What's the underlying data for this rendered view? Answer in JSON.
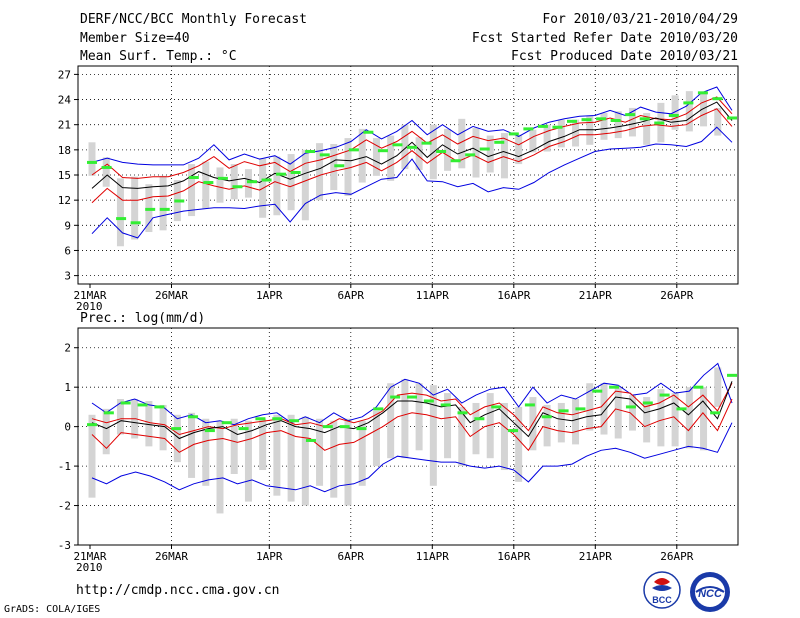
{
  "header": {
    "title": "DERF/NCC/BCC Monthly Forecast",
    "member_size": "Member Size=40",
    "variable": "Mean Surf. Temp.: °C",
    "period": "For 2010/03/21-2010/04/29",
    "fcst_start": "Fcst Started Refer Date 2010/03/20",
    "fcst_produced": "Fcst Produced Date 2010/03/21"
  },
  "footer": {
    "url": "http://cmdp.ncc.cma.gov.cn",
    "grads": "GrADS: COLA/IGES",
    "logo_bcc": "BCC",
    "logo_ncc": "NCC"
  },
  "colors": {
    "ensemble_mean": "#000000",
    "spread_red": "#e00000",
    "envelope_blue": "#0000e0",
    "box_gray": "#d4d4d4",
    "observed_green": "#33ee33",
    "grid": "#000000"
  },
  "chart_data": [
    {
      "type": "line",
      "title": "Mean Surf. Temp.: °C",
      "x_labels": [
        "21MAR",
        "26MAR",
        "1APR",
        "6APR",
        "11APR",
        "16APR",
        "21APR",
        "26APR"
      ],
      "x_label_days": [
        1,
        6,
        12,
        17,
        22,
        27,
        32,
        37
      ],
      "x_sublabel": "2010",
      "ylim": [
        2,
        28
      ],
      "yticks": [
        3,
        6,
        9,
        12,
        15,
        18,
        21,
        24,
        27
      ],
      "days": 40,
      "series": [
        {
          "name": "max",
          "color_key": "envelope_blue",
          "values": [
            16.5,
            17,
            16.5,
            16.3,
            16.2,
            16.2,
            16.2,
            17,
            18.6,
            16.8,
            17.5,
            16.9,
            17.3,
            16.3,
            17.6,
            17.9,
            18.3,
            19,
            20.4,
            19.3,
            20.2,
            21.5,
            19.8,
            21,
            19.8,
            20.8,
            20.2,
            20.4,
            19.6,
            20.6,
            21.3,
            21.7,
            22,
            22.1,
            22.7,
            22.1,
            23.1,
            22.5,
            22.3,
            23.2,
            24.8,
            25.5,
            22.7
          ]
        },
        {
          "name": "upper",
          "color_key": "spread_red",
          "values": [
            15,
            16.3,
            14.7,
            14.6,
            14.8,
            14.8,
            15.3,
            16.1,
            17.2,
            15.8,
            16.6,
            16.1,
            16.5,
            15.4,
            16.4,
            16.8,
            17.4,
            18,
            19.2,
            18.2,
            19,
            20.2,
            18.8,
            19.8,
            18.7,
            19.6,
            19.1,
            19.4,
            18.6,
            19.6,
            20.3,
            20.8,
            21.2,
            21.3,
            21.8,
            21.3,
            22.1,
            21.7,
            21.6,
            22.3,
            23.6,
            24.3,
            22.3
          ]
        },
        {
          "name": "mean",
          "color_key": "ensemble_mean",
          "values": [
            13.4,
            15,
            13.5,
            13.4,
            13.6,
            13.7,
            14.3,
            15.4,
            14.7,
            14.3,
            14.6,
            14.1,
            15.2,
            14.5,
            15.2,
            15.8,
            16.8,
            16.7,
            17.2,
            16.3,
            17.3,
            18.9,
            17.1,
            18.6,
            17.5,
            18.2,
            17.2,
            17.8,
            17.2,
            18,
            19,
            19.6,
            20.4,
            20.4,
            20.6,
            20.9,
            21.3,
            21.8,
            21.3,
            21.5,
            22.8,
            23.7,
            21.5
          ]
        },
        {
          "name": "lower",
          "color_key": "spread_red",
          "values": [
            11.7,
            13.4,
            12,
            12,
            12.4,
            12.5,
            13.1,
            14.2,
            13.7,
            13.3,
            13.7,
            13.2,
            14.2,
            13.6,
            14.3,
            15,
            15.5,
            15.9,
            16.5,
            15.5,
            16.5,
            17.9,
            16.4,
            17.7,
            16.6,
            17.4,
            16.5,
            17.2,
            16.6,
            17.4,
            18.4,
            19,
            19.8,
            19.8,
            20,
            20.3,
            20.8,
            21,
            20.8,
            21,
            22.1,
            22.9,
            20.8
          ]
        },
        {
          "name": "min",
          "color_key": "envelope_blue",
          "values": [
            8,
            9.9,
            8.1,
            7.5,
            9.9,
            10.3,
            10.7,
            10.9,
            11.1,
            11.1,
            11,
            11.3,
            11.5,
            9.4,
            11.6,
            12.6,
            12.9,
            12.7,
            13.6,
            14.5,
            14.7,
            16.9,
            14.3,
            14.2,
            13.6,
            14,
            13,
            13.5,
            13.3,
            14.1,
            15.3,
            16.2,
            17,
            17.8,
            18.1,
            18.2,
            18.3,
            18.7,
            18.6,
            18.4,
            19,
            20.7,
            18.9
          ]
        }
      ],
      "boxes": [
        [
          14.9,
          18.9
        ],
        [
          13.6,
          17.1
        ],
        [
          6.5,
          14.6
        ],
        [
          7.3,
          14.8
        ],
        [
          8.2,
          13.9
        ],
        [
          8.4,
          14.9
        ],
        [
          9.5,
          14.4
        ],
        [
          10.1,
          16.3
        ],
        [
          11,
          16.6
        ],
        [
          11.7,
          15.9
        ],
        [
          12.1,
          16.3
        ],
        [
          12.3,
          15.7
        ],
        [
          9.9,
          17
        ],
        [
          10.2,
          17.2
        ],
        [
          10.8,
          17.5
        ],
        [
          9.6,
          18
        ],
        [
          12,
          18.8
        ],
        [
          13.2,
          18.7
        ],
        [
          12.5,
          19.4
        ],
        [
          14.1,
          20.5
        ],
        [
          14.9,
          19.4
        ],
        [
          14.3,
          19.7
        ],
        [
          15.7,
          21
        ],
        [
          15.6,
          19.5
        ],
        [
          14.5,
          21
        ],
        [
          15.5,
          20.5
        ],
        [
          15.8,
          21.7
        ],
        [
          14.7,
          20.6
        ],
        [
          15.3,
          19.7
        ],
        [
          14.6,
          20
        ],
        [
          16.3,
          19.8
        ],
        [
          17.7,
          20.4
        ],
        [
          17.8,
          21
        ],
        [
          18.3,
          21.6
        ],
        [
          18.4,
          21.6
        ],
        [
          18.6,
          22.1
        ],
        [
          19.2,
          22.4
        ],
        [
          19.4,
          22.6
        ],
        [
          19.6,
          23
        ],
        [
          18.6,
          22.4
        ],
        [
          18.9,
          23.6
        ],
        [
          20.4,
          24.5
        ],
        [
          20.2,
          25
        ],
        [
          20.8,
          24.8
        ],
        [
          19.7,
          23
        ]
      ],
      "observed": [
        16.5,
        15.9,
        9.8,
        9.3,
        10.9,
        10.9,
        11.9,
        14.7,
        14.1,
        14.6,
        13.6,
        14.2,
        14.4,
        15.1,
        15.3,
        17.8,
        17.4,
        16.1,
        18,
        20.1,
        17.9,
        18.6,
        18.3,
        18.8,
        17.8,
        16.7,
        17.4,
        18.1,
        18.9,
        19.9,
        20.5,
        20.8,
        20.7,
        21.4,
        21.6,
        21.7,
        21.5,
        22.2,
        21.7,
        21.2,
        22.1,
        23.6,
        24.8,
        24.1,
        21.8
      ]
    },
    {
      "type": "line",
      "title": "Prec.: log(mm/d)",
      "x_labels": [
        "21MAR",
        "26MAR",
        "1APR",
        "6APR",
        "11APR",
        "16APR",
        "21APR",
        "26APR"
      ],
      "x_label_days": [
        1,
        6,
        12,
        17,
        22,
        27,
        32,
        37
      ],
      "x_sublabel": "2010",
      "ylim": [
        -3,
        2.5
      ],
      "yticks": [
        -3,
        -2,
        -1,
        0,
        1,
        2
      ],
      "days": 40,
      "series": [
        {
          "name": "max",
          "color_key": "envelope_blue",
          "values": [
            0.6,
            0.35,
            0.6,
            0.7,
            0.55,
            0.5,
            0.2,
            0.3,
            0.1,
            0.15,
            0.05,
            0.2,
            0.3,
            0.35,
            0.1,
            0.25,
            0.1,
            0.35,
            0.15,
            0.25,
            0.5,
            1.0,
            1.2,
            1.1,
            0.8,
            0.95,
            0.6,
            0.8,
            0.95,
            1.0,
            0.5,
            1.0,
            0.6,
            0.8,
            0.7,
            0.9,
            1.1,
            1.05,
            0.8,
            0.85,
            1.1,
            0.85,
            0.9,
            1.3,
            1.6,
            0.6
          ]
        },
        {
          "name": "upper",
          "color_key": "spread_red",
          "values": [
            0.2,
            0.1,
            0.2,
            0.2,
            0.1,
            0.05,
            -0.2,
            -0.1,
            0,
            -0.05,
            0.05,
            0.1,
            0.15,
            0.2,
            0.05,
            0.1,
            0,
            0.2,
            0.1,
            0.2,
            0.4,
            0.8,
            0.85,
            0.8,
            0.65,
            0.7,
            0.3,
            0.5,
            0.6,
            0.3,
            -0.1,
            0.5,
            0.35,
            0.3,
            0.4,
            0.5,
            0.9,
            0.85,
            0.5,
            0.6,
            0.8,
            0.5,
            0.8,
            0.4,
            1.1
          ]
        },
        {
          "name": "mean",
          "color_key": "ensemble_mean",
          "values": [
            0.1,
            -0.05,
            0.15,
            0.1,
            0.05,
            0,
            -0.3,
            -0.15,
            -0.05,
            0,
            -0.2,
            -0.1,
            0.05,
            0.15,
            0,
            -0.05,
            -0.15,
            0,
            -0.05,
            0.1,
            0.35,
            0.65,
            0.65,
            0.6,
            0.5,
            0.55,
            0.1,
            0.3,
            0.45,
            0.1,
            -0.25,
            0.35,
            0.2,
            0.15,
            0.25,
            0.3,
            0.75,
            0.7,
            0.35,
            0.45,
            0.6,
            0.3,
            0.65,
            0.2,
            1.15
          ]
        },
        {
          "name": "lower",
          "color_key": "spread_red",
          "values": [
            -0.2,
            -0.55,
            -0.15,
            -0.2,
            -0.25,
            -0.3,
            -0.65,
            -0.45,
            -0.35,
            -0.3,
            -0.4,
            -0.3,
            -0.15,
            -0.1,
            -0.25,
            -0.3,
            -0.6,
            -0.45,
            -0.4,
            -0.2,
            0,
            0.25,
            0.35,
            0.3,
            0.2,
            0.25,
            -0.25,
            0,
            0.1,
            -0.2,
            -0.6,
            0,
            -0.1,
            -0.15,
            -0.05,
            0,
            0.45,
            0.35,
            0,
            0.15,
            0.25,
            -0.1,
            0.35,
            -0.1,
            0.7
          ]
        },
        {
          "name": "min",
          "color_key": "envelope_blue",
          "values": [
            -1.3,
            -1.45,
            -1.25,
            -1.15,
            -1.25,
            -1.4,
            -1.6,
            -1.45,
            -1.35,
            -1.3,
            -1.45,
            -1.35,
            -1.5,
            -1.55,
            -1.6,
            -1.5,
            -1.65,
            -1.5,
            -1.45,
            -1.3,
            -0.95,
            -0.75,
            -0.8,
            -0.85,
            -0.9,
            -0.9,
            -1.0,
            -1.05,
            -1.0,
            -1.1,
            -1.4,
            -1.0,
            -1.0,
            -0.95,
            -0.75,
            -0.6,
            -0.55,
            -0.65,
            -0.8,
            -0.7,
            -0.6,
            -0.5,
            -0.55,
            -0.65,
            0.1
          ]
        },
        {
          "name": "min_end",
          "color_key": "envelope_blue",
          "values": [
            -1.3,
            -1.45,
            -1.25,
            -1.15,
            -1.25,
            -1.4,
            -1.6,
            -1.45,
            -1.35,
            -1.3,
            -1.45,
            -1.35,
            -1.5,
            -1.55,
            -1.6,
            -1.5,
            -1.65,
            -1.5,
            -1.45,
            -1.3,
            -0.95,
            -0.75,
            -0.8,
            -0.85,
            -0.9,
            -0.9,
            -1.0,
            -1.05,
            -1.0,
            -1.1,
            -1.4,
            -1.0,
            -1.0,
            -0.95,
            -0.75,
            -0.6,
            -0.55,
            -0.65,
            -0.8,
            -0.7,
            -0.6,
            -0.5,
            -0.55,
            -0.65,
            -0.7,
            0.1
          ]
        }
      ],
      "boxes": [
        [
          -1.8,
          0.3
        ],
        [
          -0.7,
          0.45
        ],
        [
          -0.2,
          0.7
        ],
        [
          -0.3,
          0.7
        ],
        [
          -0.5,
          0.65
        ],
        [
          -0.6,
          0.55
        ],
        [
          -0.9,
          0.3
        ],
        [
          -1.3,
          0.35
        ],
        [
          -1.5,
          0.2
        ],
        [
          -2.2,
          0.15
        ],
        [
          -1.2,
          0.2
        ],
        [
          -1.9,
          0.15
        ],
        [
          -1.1,
          0.2
        ],
        [
          -1.75,
          0.3
        ],
        [
          -1.9,
          0.3
        ],
        [
          -2.0,
          0.25
        ],
        [
          -1.5,
          0.2
        ],
        [
          -1.8,
          0.15
        ],
        [
          -2.0,
          0.2
        ],
        [
          -1.5,
          0.15
        ],
        [
          -1.0,
          0.4
        ],
        [
          -0.8,
          1.1
        ],
        [
          -0.8,
          1.2
        ],
        [
          -0.6,
          1.1
        ],
        [
          -1.5,
          1.05
        ],
        [
          -0.8,
          0.85
        ],
        [
          -1.0,
          0.5
        ],
        [
          -0.7,
          0.6
        ],
        [
          -0.8,
          0.85
        ],
        [
          -1.1,
          0.6
        ],
        [
          -1.4,
          0.5
        ],
        [
          -0.6,
          0.75
        ],
        [
          -0.5,
          0.55
        ],
        [
          -0.4,
          0.6
        ],
        [
          -0.45,
          0.7
        ],
        [
          -0.1,
          1.1
        ],
        [
          -0.2,
          1.1
        ],
        [
          -0.3,
          1.0
        ],
        [
          -0.1,
          0.8
        ],
        [
          -0.4,
          0.75
        ],
        [
          -0.5,
          0.95
        ],
        [
          -0.5,
          0.85
        ],
        [
          -0.55,
          1.0
        ],
        [
          -0.6,
          1.0
        ],
        [
          0.5,
          1.5
        ]
      ],
      "observed": [
        0.05,
        0.35,
        0.6,
        0.55,
        0.5,
        -0.05,
        0.25,
        -0.1,
        0.1,
        -0.05,
        0.2,
        0.2,
        0.15,
        -0.35,
        0,
        0,
        -0.05,
        0.45,
        0.75,
        0.75,
        0.65,
        0.55,
        0.35,
        0.2,
        0.5,
        -0.1,
        0.55,
        0.25,
        0.4,
        0.45,
        0.9,
        1.0,
        0.5,
        0.6,
        0.8,
        0.45,
        1.0,
        0.35,
        1.3
      ]
    }
  ]
}
